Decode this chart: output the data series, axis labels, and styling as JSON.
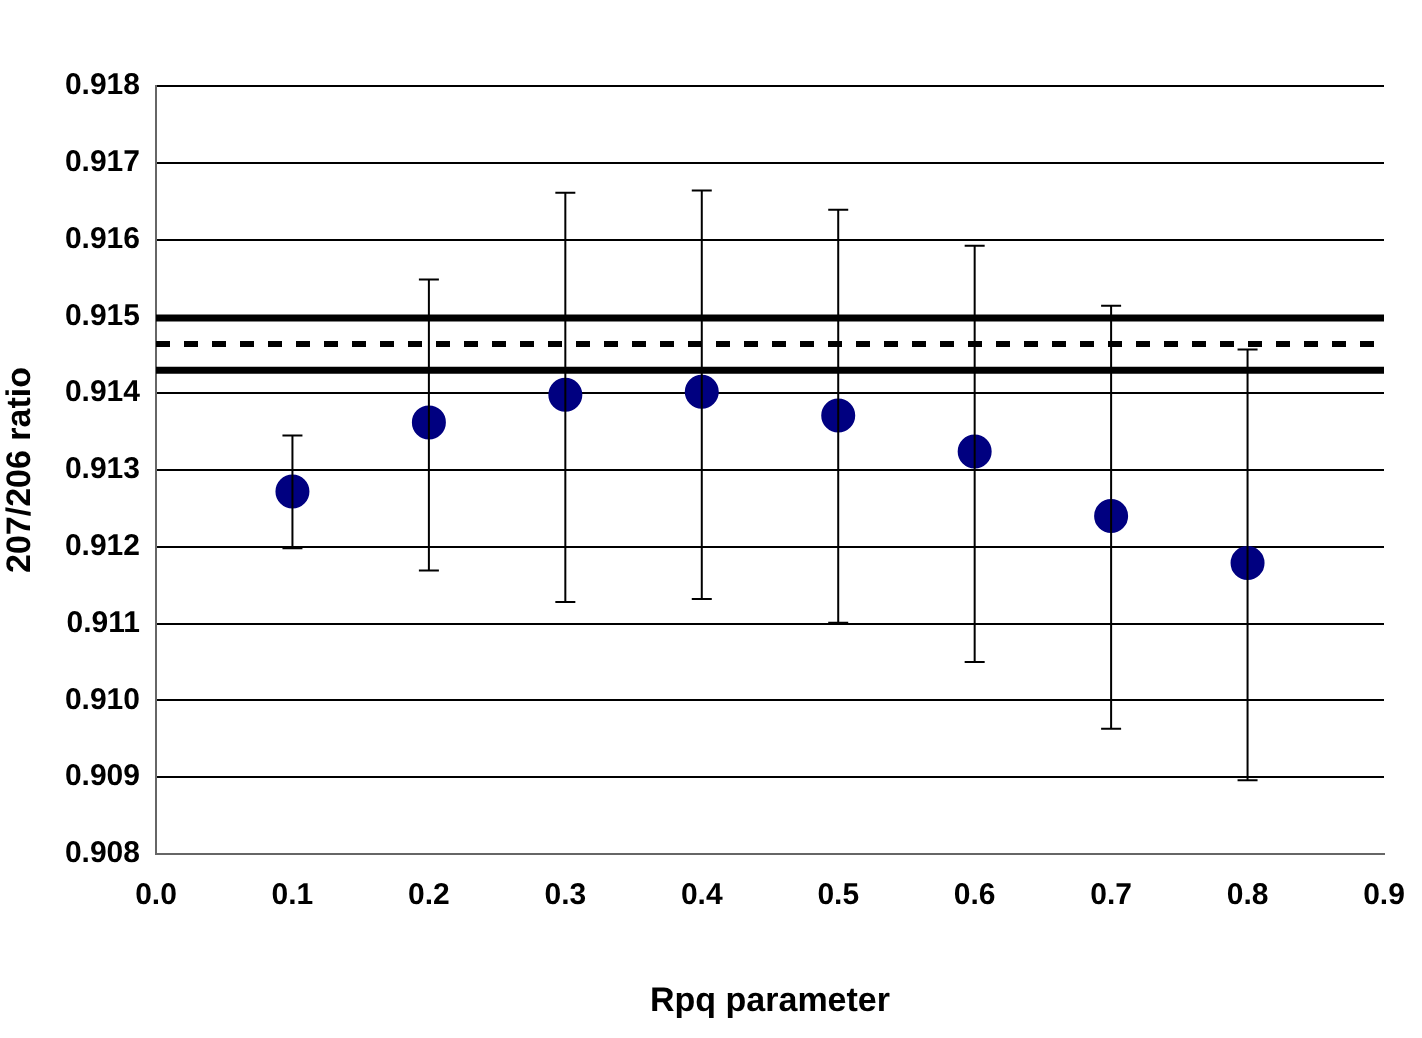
{
  "chart_data": {
    "type": "scatter",
    "xlabel": "Rpq parameter",
    "ylabel": "207/206 ratio",
    "x": [
      0.1,
      0.2,
      0.3,
      0.4,
      0.5,
      0.6,
      0.7,
      0.8
    ],
    "series": [
      {
        "color": "#000080",
        "values": [
          0.91272,
          0.91362,
          0.91398,
          0.91402,
          0.91371,
          0.91324,
          0.9124,
          0.91179
        ],
        "errors": [
          [
            0.91198,
            0.91345
          ],
          [
            0.91169,
            0.91548
          ],
          [
            0.91128,
            0.91661
          ],
          [
            0.91132,
            0.91664
          ],
          [
            0.91101,
            0.91639
          ],
          [
            0.9105,
            0.91592
          ],
          [
            0.90963,
            0.91514
          ],
          [
            0.90896,
            0.91457
          ]
        ]
      }
    ],
    "xlim": [
      0,
      0.9
    ],
    "xticks": [
      {
        "value": 0,
        "label": "0.0"
      },
      0.1,
      0.2,
      0.3,
      0.4,
      0.5,
      0.6,
      0.7,
      0.8,
      0.9
    ],
    "ylim": [
      0.908,
      0.918
    ],
    "yticks": [
      0.908,
      0.909,
      {
        "value": 0.91,
        "label": "0.910"
      },
      0.911,
      0.912,
      0.913,
      0.914,
      0.915,
      0.916,
      0.917,
      0.918
    ],
    "ref_lines": [
      {
        "axis": "y",
        "value": 0.91498,
        "color": "#000000",
        "line_style": "solid"
      },
      {
        "axis": "y",
        "value": 0.91464,
        "color": "#000000",
        "line_style": "dashed"
      },
      {
        "axis": "y",
        "value": 0.9143,
        "color": "#000000",
        "line_style": "solid"
      }
    ],
    "grid": "y",
    "legend": false,
    "marker": "circle"
  }
}
